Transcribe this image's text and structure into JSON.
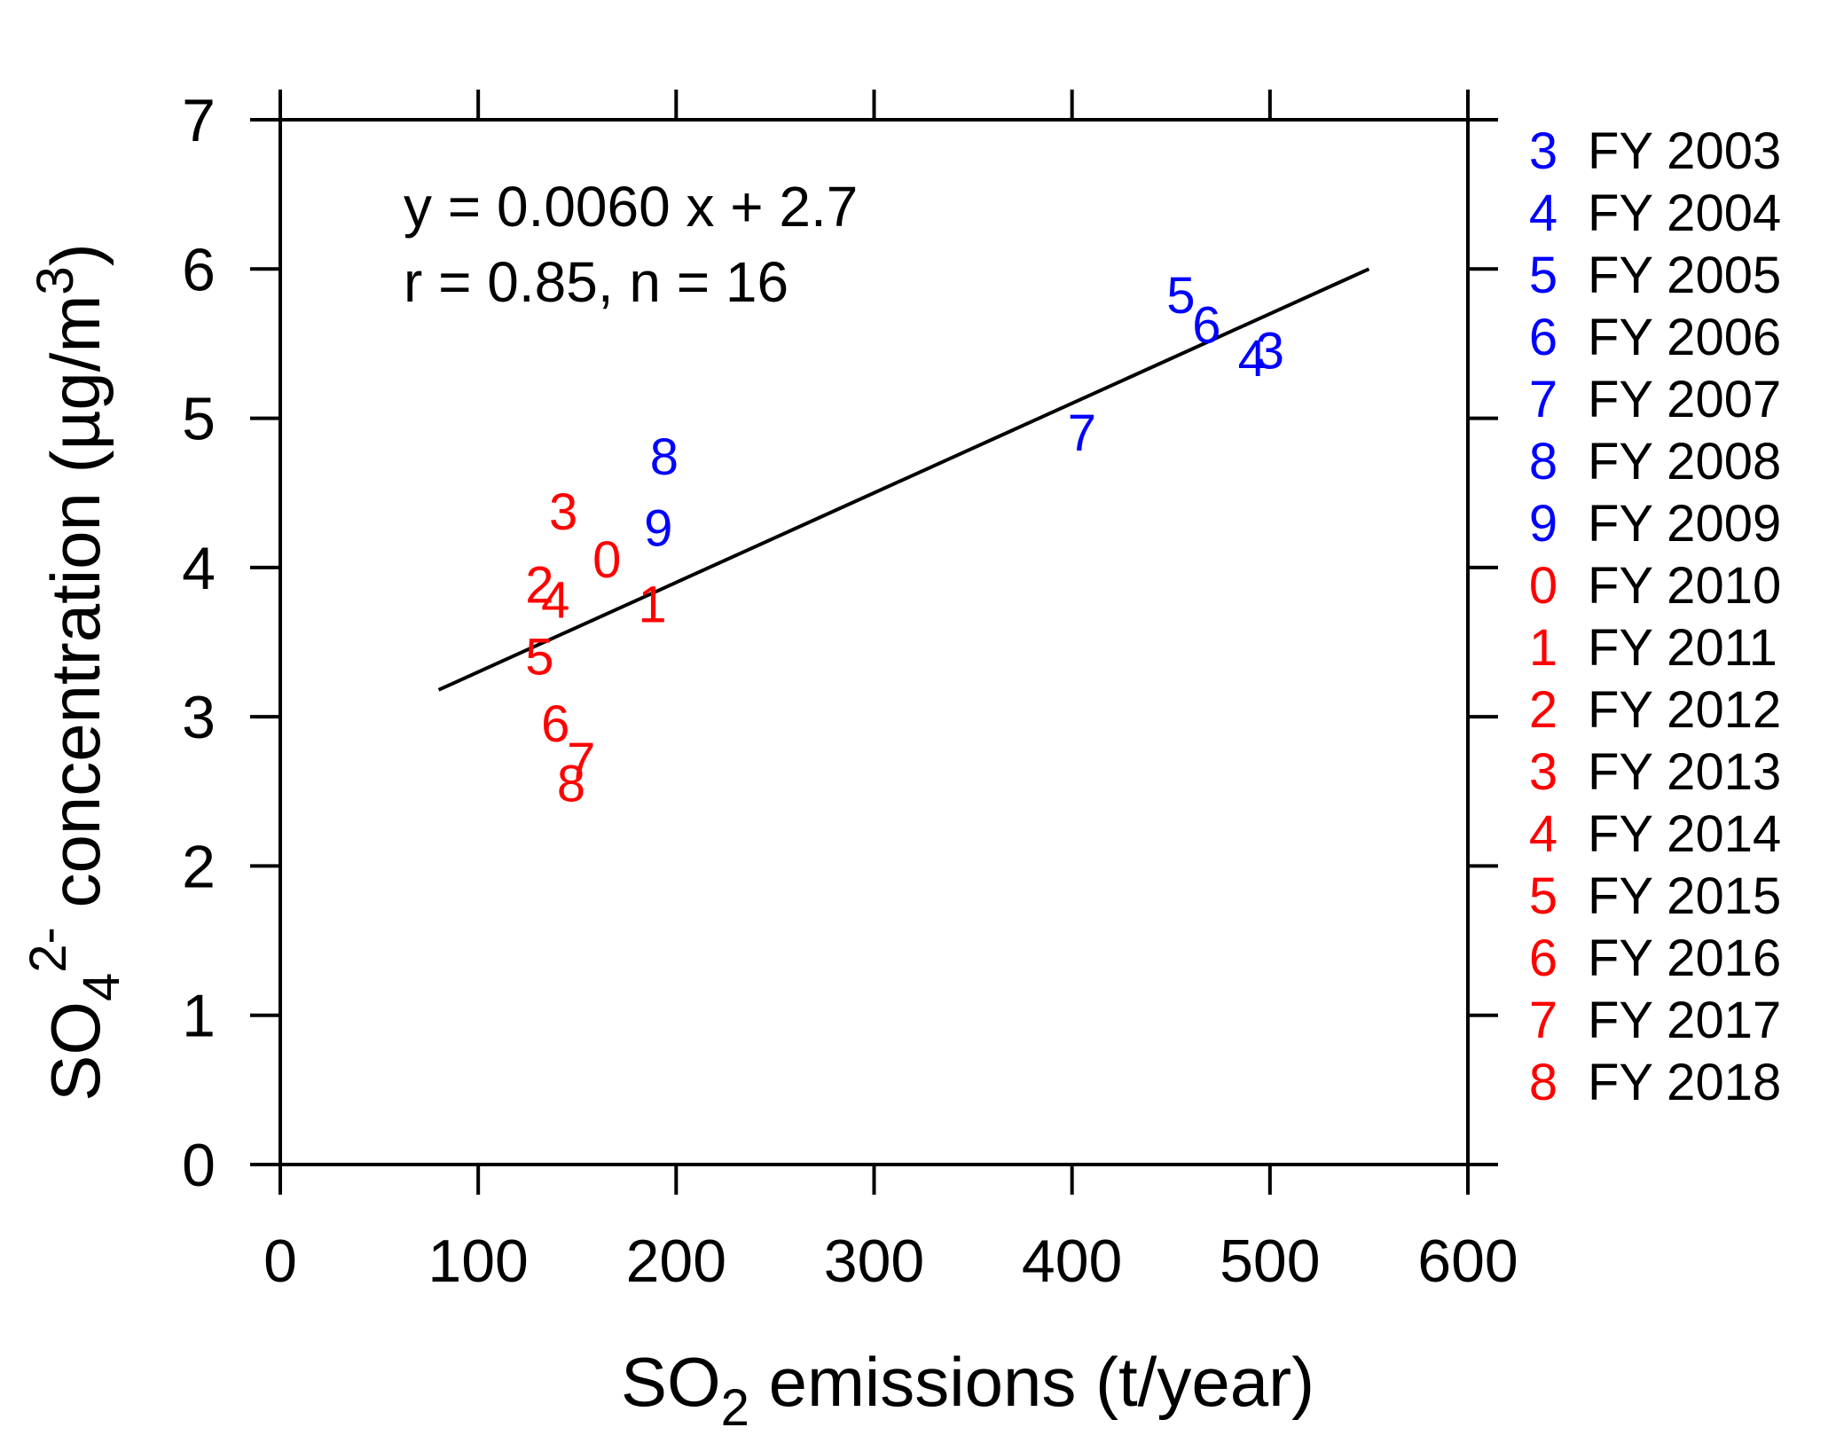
{
  "chart_data": {
    "type": "scatter",
    "xlabel": {
      "main": "SO",
      "sub": "2",
      "rest": " emissions (t/year)"
    },
    "ylabel": {
      "main": "SO",
      "sub": "4",
      "sup": "2-",
      "rest": " concentration (µg/m",
      "sup2": "3",
      "end": ")"
    },
    "xlim": [
      0,
      600
    ],
    "ylim": [
      0,
      7
    ],
    "xticks": [
      0,
      100,
      200,
      300,
      400,
      500,
      600
    ],
    "yticks": [
      0,
      1,
      2,
      3,
      4,
      5,
      6,
      7
    ],
    "xtick_labels": [
      "0",
      "100",
      "200",
      "300",
      "400",
      "500",
      "600"
    ],
    "ytick_labels": [
      "0",
      "1",
      "2",
      "3",
      "4",
      "5",
      "6",
      "7"
    ],
    "annotation": [
      "y = 0.0060 x + 2.7",
      "r = 0.85, n = 16"
    ],
    "regression": {
      "slope": 0.006,
      "intercept": 2.7,
      "x_range": [
        80,
        550
      ]
    },
    "colors": {
      "before_2010": "#0000ff",
      "from_2010": "#ff0000",
      "line": "#000000",
      "axis": "#000000"
    },
    "points": [
      {
        "label": "3",
        "year": "FY 2003",
        "x": 500,
        "y": 5.45,
        "color": "#0000ff"
      },
      {
        "label": "4",
        "year": "FY 2004",
        "x": 491,
        "y": 5.4,
        "color": "#0000ff"
      },
      {
        "label": "5",
        "year": "FY 2005",
        "x": 455,
        "y": 5.82,
        "color": "#0000ff"
      },
      {
        "label": "6",
        "year": "FY 2006",
        "x": 468,
        "y": 5.62,
        "color": "#0000ff"
      },
      {
        "label": "7",
        "year": "FY 2007",
        "x": 405,
        "y": 4.9,
        "color": "#0000ff"
      },
      {
        "label": "8",
        "year": "FY 2008",
        "x": 194,
        "y": 4.74,
        "color": "#0000ff"
      },
      {
        "label": "9",
        "year": "FY 2009",
        "x": 191,
        "y": 4.26,
        "color": "#0000ff"
      },
      {
        "label": "0",
        "year": "FY 2010",
        "x": 165,
        "y": 4.05,
        "color": "#ff0000"
      },
      {
        "label": "1",
        "year": "FY 2011",
        "x": 188,
        "y": 3.75,
        "color": "#ff0000"
      },
      {
        "label": "2",
        "year": "FY 2012",
        "x": 131,
        "y": 3.88,
        "color": "#ff0000"
      },
      {
        "label": "3",
        "year": "FY 2013",
        "x": 143,
        "y": 4.37,
        "color": "#ff0000"
      },
      {
        "label": "4",
        "year": "FY 2014",
        "x": 139,
        "y": 3.78,
        "color": "#ff0000"
      },
      {
        "label": "5",
        "year": "FY 2015",
        "x": 131,
        "y": 3.4,
        "color": "#ff0000"
      },
      {
        "label": "6",
        "year": "FY 2016",
        "x": 139,
        "y": 2.95,
        "color": "#ff0000"
      },
      {
        "label": "7",
        "year": "FY 2017",
        "x": 152,
        "y": 2.7,
        "color": "#ff0000"
      },
      {
        "label": "8",
        "year": "FY 2018",
        "x": 147,
        "y": 2.55,
        "color": "#ff0000"
      }
    ],
    "legend": [
      {
        "num": "3",
        "text": "FY 2003",
        "color": "#0000ff"
      },
      {
        "num": "4",
        "text": "FY 2004",
        "color": "#0000ff"
      },
      {
        "num": "5",
        "text": "FY 2005",
        "color": "#0000ff"
      },
      {
        "num": "6",
        "text": "FY 2006",
        "color": "#0000ff"
      },
      {
        "num": "7",
        "text": "FY 2007",
        "color": "#0000ff"
      },
      {
        "num": "8",
        "text": "FY 2008",
        "color": "#0000ff"
      },
      {
        "num": "9",
        "text": "FY 2009",
        "color": "#0000ff"
      },
      {
        "num": "0",
        "text": "FY 2010",
        "color": "#ff0000"
      },
      {
        "num": "1",
        "text": "FY 2011",
        "color": "#ff0000"
      },
      {
        "num": "2",
        "text": "FY 2012",
        "color": "#ff0000"
      },
      {
        "num": "3",
        "text": "FY 2013",
        "color": "#ff0000"
      },
      {
        "num": "4",
        "text": "FY 2014",
        "color": "#ff0000"
      },
      {
        "num": "5",
        "text": "FY 2015",
        "color": "#ff0000"
      },
      {
        "num": "6",
        "text": "FY 2016",
        "color": "#ff0000"
      },
      {
        "num": "7",
        "text": "FY 2017",
        "color": "#ff0000"
      },
      {
        "num": "8",
        "text": "FY 2018",
        "color": "#ff0000"
      }
    ],
    "legend_position": "right"
  }
}
